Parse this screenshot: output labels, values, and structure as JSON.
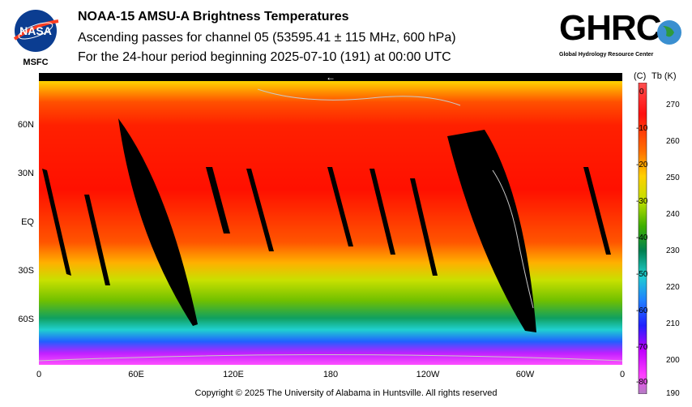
{
  "header": {
    "title": "NOAA-15 AMSU-A Brightness Temperatures",
    "subtitle1": "Ascending passes for channel 05 (53595.41 ± 115 MHz, 600 hPa)",
    "subtitle2": "For the 24-hour period beginning 2025-07-10 (191) at 00:00 UTC"
  },
  "logos": {
    "nasa_text": "NASA",
    "nasa_sub": "MSFC",
    "ghrc_text": "GHRC",
    "ghrc_sub": "Global Hydrology Resource Center"
  },
  "map": {
    "lat_labels": [
      "60N",
      "30N",
      "EQ",
      "30S",
      "60S"
    ],
    "lon_labels": [
      "0",
      "60E",
      "120E",
      "180",
      "120W",
      "60W",
      "0"
    ],
    "arrow_glyph": "←"
  },
  "colorbar": {
    "left_unit": "(C)",
    "right_unit": "Tb (K)",
    "celsius_ticks": [
      "0",
      "-10",
      "-20",
      "-30",
      "-40",
      "-50",
      "-60",
      "-70",
      "-80"
    ],
    "kelvin_ticks": [
      "270",
      "260",
      "250",
      "240",
      "230",
      "220",
      "210",
      "200",
      "190"
    ],
    "range_k": [
      190,
      273
    ]
  },
  "footer": {
    "copyright": "Copyright © 2025 The University of Alabama in Huntsville.  All rights reserved"
  },
  "colors": {
    "cold": "#a000a0",
    "warm": "#ff0000"
  }
}
